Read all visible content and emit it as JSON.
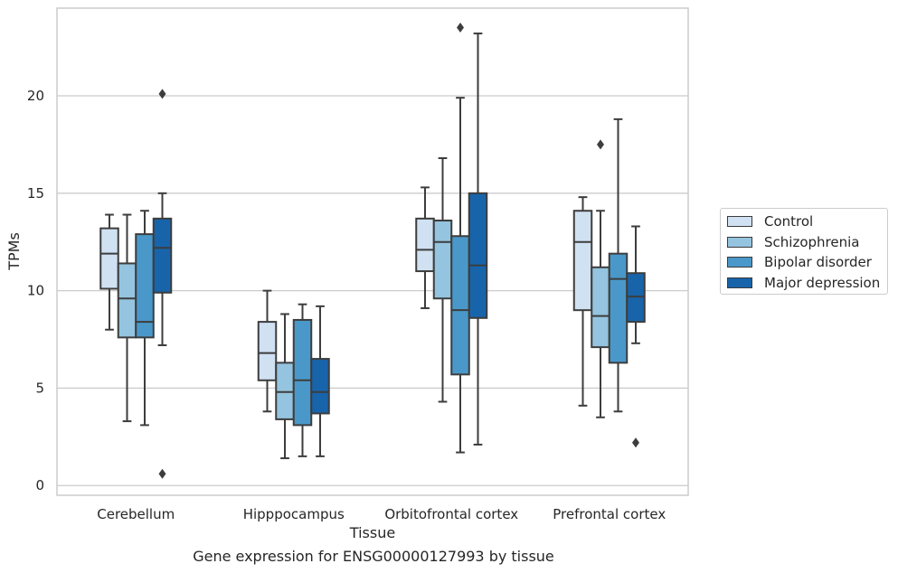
{
  "caption": "Gene expression for ENSG00000127993 by tissue",
  "chart_data": {
    "type": "box",
    "title": "",
    "xlabel": "Tissue",
    "ylabel": "TPMs",
    "ylim": [
      -0.5,
      24.5
    ],
    "yticks": [
      0,
      5,
      10,
      15,
      20
    ],
    "grid": "horizontal",
    "legend_position": "right",
    "categories": [
      "Cerebellum",
      "Hipppocampus",
      "Orbitofrontal cortex",
      "Prefrontal cortex"
    ],
    "series": [
      {
        "name": "Control",
        "color": "#d0e1f2",
        "boxes": [
          {
            "whisker_low": 8.0,
            "q1": 10.1,
            "median": 11.9,
            "q3": 13.2,
            "whisker_high": 13.9,
            "outliers": []
          },
          {
            "whisker_low": 3.8,
            "q1": 5.4,
            "median": 6.8,
            "q3": 8.4,
            "whisker_high": 10.0,
            "outliers": []
          },
          {
            "whisker_low": 9.1,
            "q1": 11.0,
            "median": 12.1,
            "q3": 13.7,
            "whisker_high": 15.3,
            "outliers": []
          },
          {
            "whisker_low": 4.1,
            "q1": 9.0,
            "median": 12.5,
            "q3": 14.1,
            "whisker_high": 14.8,
            "outliers": []
          }
        ]
      },
      {
        "name": "Schizophrenia",
        "color": "#94c4df",
        "boxes": [
          {
            "whisker_low": 3.3,
            "q1": 7.6,
            "median": 9.6,
            "q3": 11.4,
            "whisker_high": 13.9,
            "outliers": []
          },
          {
            "whisker_low": 1.4,
            "q1": 3.4,
            "median": 4.8,
            "q3": 6.3,
            "whisker_high": 8.8,
            "outliers": []
          },
          {
            "whisker_low": 4.3,
            "q1": 9.6,
            "median": 12.5,
            "q3": 13.6,
            "whisker_high": 16.8,
            "outliers": []
          },
          {
            "whisker_low": 3.5,
            "q1": 7.1,
            "median": 8.7,
            "q3": 11.2,
            "whisker_high": 14.1,
            "outliers": [
              17.5
            ]
          }
        ]
      },
      {
        "name": "Bipolar disorder",
        "color": "#4a98c9",
        "boxes": [
          {
            "whisker_low": 3.1,
            "q1": 7.6,
            "median": 8.4,
            "q3": 12.9,
            "whisker_high": 14.1,
            "outliers": []
          },
          {
            "whisker_low": 1.5,
            "q1": 3.1,
            "median": 5.4,
            "q3": 8.5,
            "whisker_high": 9.3,
            "outliers": []
          },
          {
            "whisker_low": 1.7,
            "q1": 5.7,
            "median": 9.0,
            "q3": 12.8,
            "whisker_high": 19.9,
            "outliers": [
              23.5
            ]
          },
          {
            "whisker_low": 3.8,
            "q1": 6.3,
            "median": 10.6,
            "q3": 11.9,
            "whisker_high": 18.8,
            "outliers": []
          }
        ]
      },
      {
        "name": "Major depression",
        "color": "#1764ab",
        "boxes": [
          {
            "whisker_low": 7.2,
            "q1": 9.9,
            "median": 12.2,
            "q3": 13.7,
            "whisker_high": 15.0,
            "outliers": [
              0.6,
              20.1
            ]
          },
          {
            "whisker_low": 1.5,
            "q1": 3.7,
            "median": 4.8,
            "q3": 6.5,
            "whisker_high": 9.2,
            "outliers": []
          },
          {
            "whisker_low": 2.1,
            "q1": 8.6,
            "median": 11.3,
            "q3": 15.0,
            "whisker_high": 23.2,
            "outliers": []
          },
          {
            "whisker_low": 7.3,
            "q1": 8.4,
            "median": 9.7,
            "q3": 10.9,
            "whisker_high": 13.3,
            "outliers": [
              2.2
            ]
          }
        ]
      }
    ]
  }
}
